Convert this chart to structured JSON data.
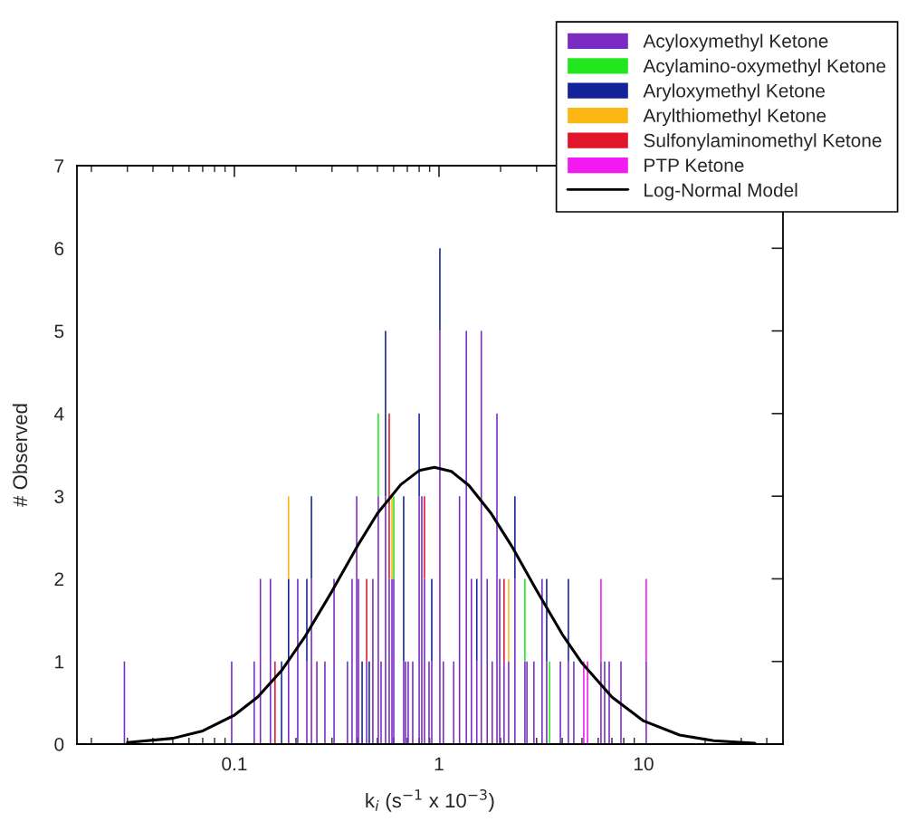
{
  "chart_data": {
    "type": "bar",
    "stacked": true,
    "log": "x",
    "xlabel": "k$_{i}$ (s$^{−1}$ x 10$^{−3}$)",
    "ylabel": "# Observed",
    "xlim": [
      0.017,
      48
    ],
    "xticks": [
      0.1,
      1,
      10
    ],
    "ylim": [
      0,
      7
    ],
    "yticks": [
      0,
      1,
      2,
      3,
      4,
      5,
      6,
      7
    ],
    "legend": "top right",
    "grid": false,
    "x": [
      0.029,
      0.097,
      0.125,
      0.134,
      0.15,
      0.158,
      0.17,
      0.184,
      0.204,
      0.226,
      0.238,
      0.253,
      0.277,
      0.307,
      0.357,
      0.376,
      0.396,
      0.404,
      0.421,
      0.443,
      0.456,
      0.475,
      0.505,
      0.521,
      0.548,
      0.571,
      0.589,
      0.601,
      0.672,
      0.686,
      0.707,
      0.744,
      0.8,
      0.824,
      0.849,
      0.894,
      0.922,
      1.01,
      1.05,
      1.18,
      1.26,
      1.36,
      1.44,
      1.53,
      1.61,
      1.72,
      1.82,
      1.92,
      1.98,
      2.08,
      2.19,
      2.35,
      2.63,
      2.69,
      2.91,
      3.19,
      3.36,
      3.47,
      3.92,
      4.29,
      4.56,
      5.1,
      5.32,
      6.19,
      6.45,
      6.79,
      7.75,
      10.3
    ],
    "series": [
      {
        "name": "Acyloxymethyl Ketone",
        "color": "#7a2bc4",
        "values": [
          1,
          1,
          1,
          2,
          2,
          null,
          null,
          1,
          2,
          1,
          2,
          1,
          1,
          2,
          1,
          2,
          3,
          2,
          null,
          1,
          null,
          2,
          3,
          1,
          3,
          2,
          2,
          2,
          1,
          1,
          1,
          1,
          3,
          3,
          2,
          1,
          1,
          5,
          1,
          1,
          3,
          5,
          2,
          1,
          5,
          2,
          1,
          4,
          2,
          1,
          1,
          2,
          1,
          1,
          1,
          2,
          1,
          null,
          1,
          1,
          1,
          null,
          null,
          1,
          1,
          1,
          1,
          1
        ]
      },
      {
        "name": "Acylamino-oxymethyl Ketone",
        "color": "#22e61e",
        "values": [
          null,
          null,
          null,
          null,
          null,
          null,
          null,
          null,
          null,
          null,
          null,
          null,
          null,
          null,
          null,
          null,
          null,
          null,
          null,
          null,
          null,
          null,
          1,
          null,
          null,
          null,
          null,
          1,
          null,
          null,
          null,
          null,
          null,
          null,
          null,
          null,
          null,
          null,
          null,
          null,
          null,
          null,
          null,
          null,
          null,
          null,
          null,
          null,
          null,
          null,
          null,
          null,
          1,
          null,
          null,
          null,
          null,
          1,
          null,
          null,
          null,
          null,
          null,
          null,
          null,
          null,
          null,
          null
        ]
      },
      {
        "name": "Aryloxymethyl Ketone",
        "color": "#14239a",
        "values": [
          null,
          null,
          null,
          null,
          null,
          null,
          1,
          1,
          null,
          1,
          1,
          null,
          null,
          null,
          null,
          null,
          null,
          null,
          1,
          null,
          1,
          null,
          null,
          null,
          2,
          null,
          null,
          null,
          2,
          null,
          null,
          null,
          1,
          null,
          null,
          null,
          1,
          1,
          null,
          null,
          null,
          null,
          null,
          1,
          null,
          null,
          null,
          null,
          null,
          null,
          null,
          1,
          null,
          null,
          null,
          null,
          1,
          null,
          null,
          1,
          null,
          null,
          null,
          null,
          null,
          null,
          null,
          null
        ]
      },
      {
        "name": "Arylthiomethyl Ketone",
        "color": "#fdb713",
        "values": [
          null,
          null,
          null,
          null,
          null,
          null,
          null,
          1,
          null,
          null,
          null,
          null,
          null,
          null,
          null,
          null,
          null,
          null,
          null,
          null,
          null,
          null,
          null,
          null,
          null,
          null,
          1,
          null,
          null,
          null,
          null,
          null,
          null,
          null,
          null,
          null,
          null,
          null,
          null,
          null,
          null,
          null,
          null,
          null,
          null,
          null,
          null,
          null,
          null,
          null,
          1,
          null,
          null,
          null,
          null,
          null,
          null,
          null,
          null,
          null,
          null,
          null,
          null,
          null,
          null,
          null,
          null,
          null
        ]
      },
      {
        "name": "Sulfonylaminomethyl Ketone",
        "color": "#e0162b",
        "values": [
          null,
          null,
          null,
          null,
          null,
          1,
          null,
          null,
          null,
          null,
          null,
          null,
          null,
          null,
          null,
          null,
          null,
          null,
          null,
          1,
          null,
          null,
          null,
          null,
          null,
          2,
          null,
          null,
          null,
          null,
          null,
          null,
          null,
          null,
          1,
          null,
          null,
          null,
          null,
          null,
          null,
          null,
          null,
          null,
          null,
          null,
          null,
          null,
          null,
          1,
          null,
          null,
          null,
          null,
          null,
          null,
          null,
          null,
          null,
          null,
          null,
          null,
          null,
          null,
          null,
          null,
          null,
          null
        ]
      },
      {
        "name": "PTP Ketone",
        "color": "#f21af0",
        "values": [
          null,
          null,
          null,
          null,
          null,
          null,
          null,
          null,
          null,
          null,
          null,
          null,
          null,
          null,
          null,
          null,
          null,
          null,
          null,
          null,
          null,
          null,
          null,
          null,
          null,
          null,
          null,
          null,
          null,
          null,
          null,
          null,
          null,
          null,
          null,
          null,
          null,
          null,
          null,
          null,
          null,
          null,
          null,
          null,
          null,
          null,
          null,
          null,
          null,
          null,
          null,
          null,
          null,
          null,
          null,
          null,
          null,
          null,
          null,
          null,
          null,
          1,
          1,
          1,
          null,
          null,
          null,
          1
        ]
      },
      {
        "name": "Log-Normal Model",
        "type": "line",
        "color": "#000000",
        "x": [
          0.03,
          0.05,
          0.07,
          0.1,
          0.13,
          0.17,
          0.22,
          0.3,
          0.4,
          0.5,
          0.65,
          0.8,
          0.95,
          1.15,
          1.4,
          1.8,
          2.3,
          3,
          4,
          5,
          7,
          10,
          15,
          22,
          35
        ],
        "values": [
          0.02,
          0.07,
          0.16,
          0.35,
          0.57,
          0.89,
          1.29,
          1.85,
          2.4,
          2.79,
          3.14,
          3.31,
          3.35,
          3.3,
          3.13,
          2.79,
          2.37,
          1.86,
          1.33,
          0.98,
          0.57,
          0.28,
          0.11,
          0.04,
          0.01
        ]
      }
    ]
  }
}
